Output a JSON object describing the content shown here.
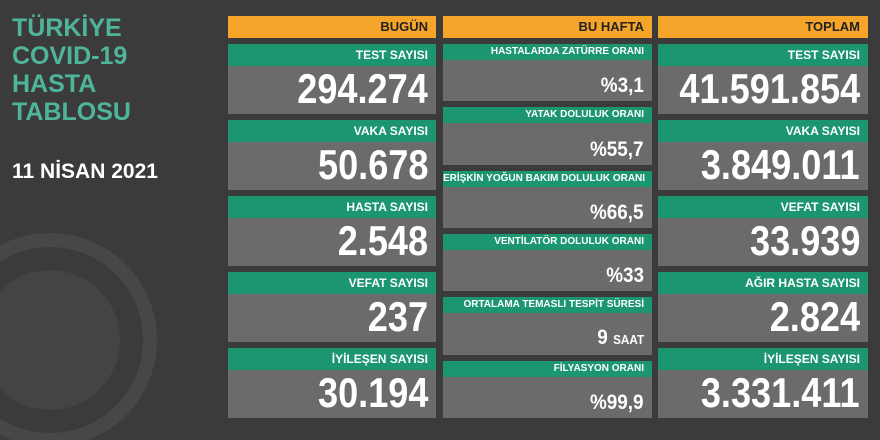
{
  "header": {
    "title_lines": [
      "TÜRKİYE",
      "COVID-19",
      "HASTA",
      "TABLOSU"
    ],
    "date": "11 NİSAN 2021"
  },
  "columns": [
    {
      "heading": "BUGÜN",
      "cards": [
        {
          "label": "TEST SAYISI",
          "value": "294.274"
        },
        {
          "label": "VAKA SAYISI",
          "value": "50.678"
        },
        {
          "label": "HASTA SAYISI",
          "value": "2.548"
        },
        {
          "label": "VEFAT SAYISI",
          "value": "237"
        },
        {
          "label": "İYİLEŞEN SAYISI",
          "value": "30.194"
        }
      ]
    },
    {
      "heading": "BU HAFTA",
      "cards": [
        {
          "label": "HASTALARDA ZATÜRRE ORANI",
          "value": "%3,1"
        },
        {
          "label": "YATAK DOLULUK ORANI",
          "value": "%55,7"
        },
        {
          "label": "ERİŞKİN YOĞUN BAKIM DOLULUK ORANI",
          "value": "%66,5"
        },
        {
          "label": "VENTİLATÖR DOLULUK ORANI",
          "value": "%33"
        },
        {
          "label": "ORTALAMA TEMASLI TESPİT SÜRESİ",
          "value": "9",
          "unit": "SAAT"
        },
        {
          "label": "FİLYASYON ORANI",
          "value": "%99,9"
        }
      ]
    },
    {
      "heading": "TOPLAM",
      "cards": [
        {
          "label": "TEST SAYISI",
          "value": "41.591.854"
        },
        {
          "label": "VAKA SAYISI",
          "value": "3.849.011"
        },
        {
          "label": "VEFAT SAYISI",
          "value": "33.939"
        },
        {
          "label": "AĞIR HASTA SAYISI",
          "value": "2.824"
        },
        {
          "label": "İYİLEŞEN SAYISI",
          "value": "3.331.411"
        }
      ]
    }
  ]
}
